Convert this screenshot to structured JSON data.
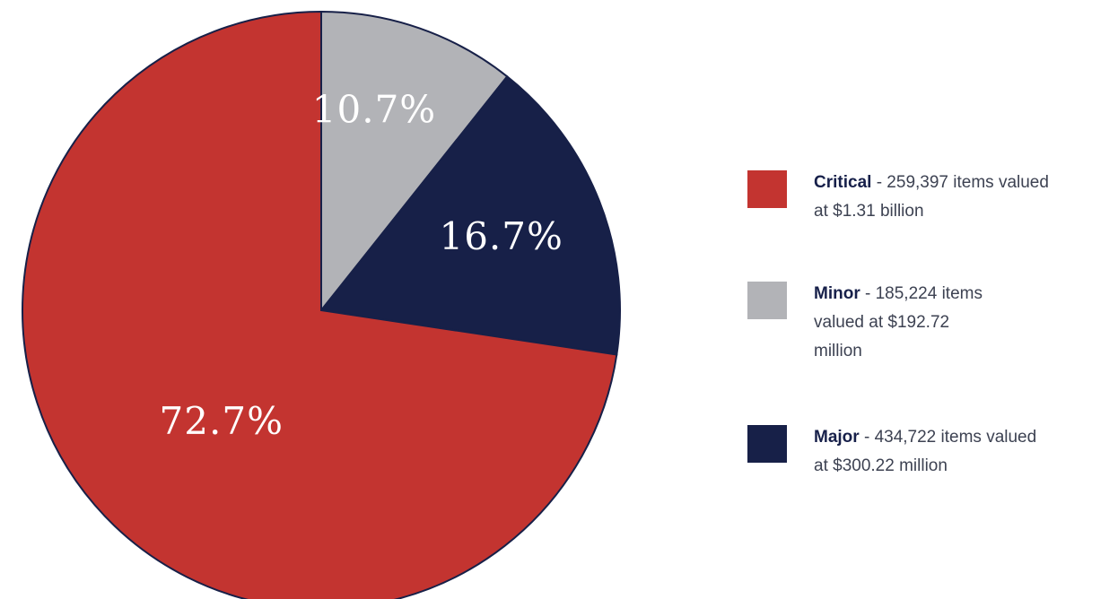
{
  "chart_data": {
    "type": "pie",
    "slices": [
      {
        "name": "Minor",
        "percent": 10.7,
        "label": "10.7%",
        "color": "#b2b3b7"
      },
      {
        "name": "Major",
        "percent": 16.7,
        "label": "16.7%",
        "color": "#172048"
      },
      {
        "name": "Critical",
        "percent": 72.7,
        "label": "72.7%",
        "color": "#c33430"
      }
    ],
    "start_angle_deg": 0,
    "direction": "clockwise",
    "outline_color": "#172048",
    "legend_placement": "right"
  },
  "legend": [
    {
      "name": "Critical",
      "description_lines": [
        " - 259,397 items valued",
        "at $1.31 billion"
      ],
      "color": "#c33430"
    },
    {
      "name": "Minor",
      "description_lines": [
        " - 185,224 items",
        "valued at $192.72",
        "million"
      ],
      "color": "#b2b3b7"
    },
    {
      "name": "Major",
      "description_lines": [
        " - 434,722 items valued",
        "at $300.22 million"
      ],
      "color": "#172048"
    }
  ]
}
